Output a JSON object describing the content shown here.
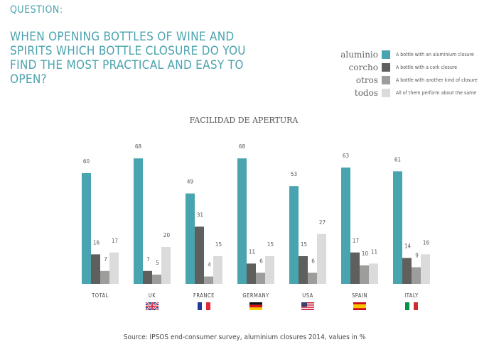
{
  "question_label": "QUESTION:",
  "question": "WHEN OPENING BOTTLES OF WINE AND SPIRITS WHICH BOTTLE CLOSURE DO YOU FIND THE MOST PRACTICAL AND EASY TO OPEN?",
  "source": "Source: IPSOS end-consumer survey, aluminium closures 2014, values in %",
  "chart_data": {
    "type": "bar",
    "title": "FACILIDAD DE APERTURA",
    "categories": [
      "TOTAL",
      "UK",
      "FRANCE",
      "GERMANY",
      "USA",
      "SPAIN",
      "ITALY"
    ],
    "flags": [
      null,
      "uk-flag",
      "france-flag",
      "germany-flag",
      "usa-flag",
      "spain-flag",
      "italy-flag"
    ],
    "series": [
      {
        "name": "aluminio",
        "description": "A bottle with an aluminium closure",
        "color": "#48a4ae",
        "values": [
          60,
          68,
          49,
          68,
          53,
          63,
          61
        ]
      },
      {
        "name": "corcho",
        "description": "A bottle with a cork closure",
        "color": "#5f5f5d",
        "values": [
          16,
          7,
          31,
          11,
          15,
          17,
          14
        ]
      },
      {
        "name": "otros",
        "description": "A bottle with another kind of closure",
        "color": "#9d9d9c",
        "values": [
          7,
          5,
          4,
          6,
          6,
          10,
          9
        ]
      },
      {
        "name": "todos",
        "description": "All of them perform about the same",
        "color": "#dadbda",
        "values": [
          17,
          20,
          15,
          15,
          27,
          11,
          16
        ]
      }
    ],
    "ylim": [
      0,
      70
    ],
    "legend": "top-right"
  }
}
